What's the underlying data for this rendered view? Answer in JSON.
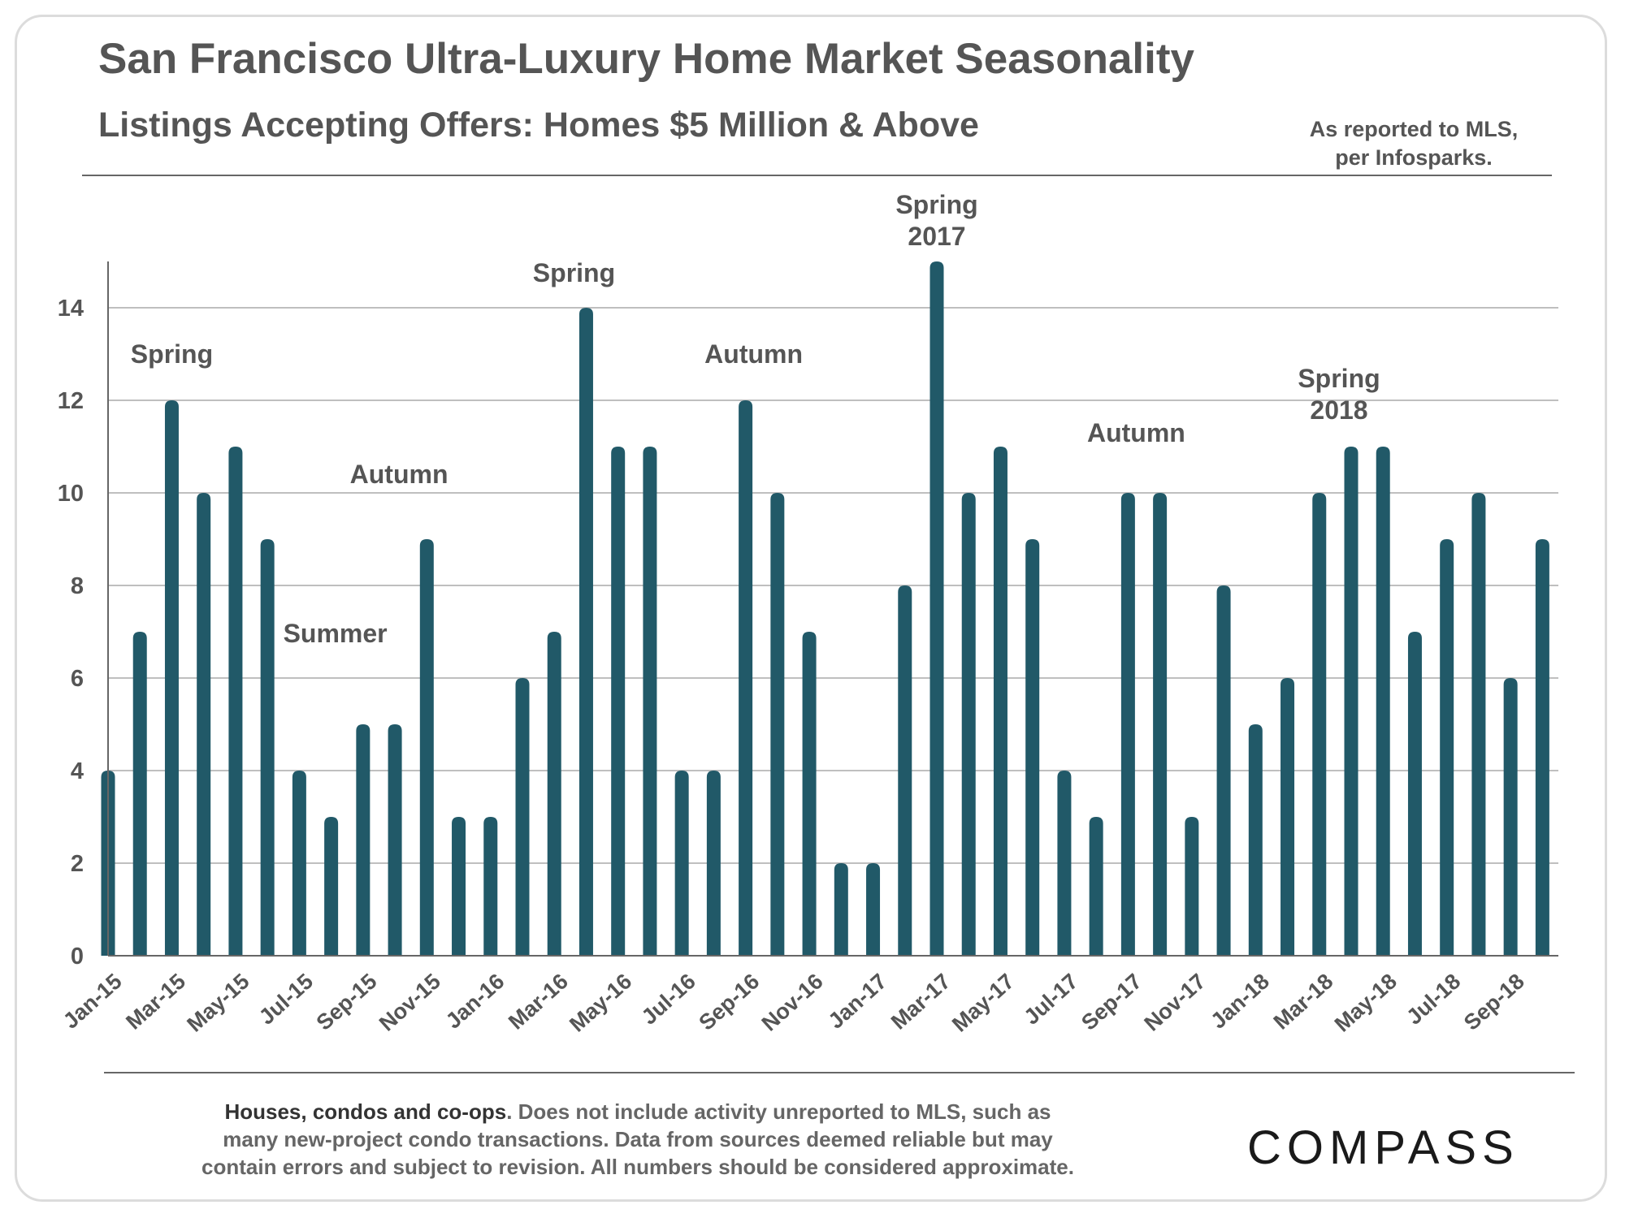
{
  "header": {
    "title": "San Francisco Ultra-Luxury Home Market Seasonality",
    "subtitle": "Listings Accepting Offers: Homes $5 Million & Above",
    "source_line1": "As reported to MLS,",
    "source_line2": "per Infosparks."
  },
  "colors": {
    "bar": "#215968",
    "gridline": "#bfbfbf",
    "text": "#555555"
  },
  "chart_data": {
    "type": "bar",
    "title": "San Francisco Ultra-Luxury Home Market Seasonality",
    "subtitle": "Listings Accepting Offers: Homes $5 Million & Above",
    "xlabel": "",
    "ylabel": "",
    "ylim": [
      0,
      15
    ],
    "yticks": [
      0,
      2,
      4,
      6,
      8,
      10,
      12,
      14
    ],
    "grid": true,
    "legend": "none",
    "categories": [
      "Jan-15",
      "Feb-15",
      "Mar-15",
      "Apr-15",
      "May-15",
      "Jun-15",
      "Jul-15",
      "Aug-15",
      "Sep-15",
      "Oct-15",
      "Nov-15",
      "Dec-15",
      "Jan-16",
      "Feb-16",
      "Mar-16",
      "Apr-16",
      "May-16",
      "Jun-16",
      "Jul-16",
      "Aug-16",
      "Sep-16",
      "Oct-16",
      "Nov-16",
      "Dec-16",
      "Jan-17",
      "Feb-17",
      "Mar-17",
      "Apr-17",
      "May-17",
      "Jun-17",
      "Jul-17",
      "Aug-17",
      "Sep-17",
      "Oct-17",
      "Nov-17",
      "Dec-17",
      "Jan-18",
      "Feb-18",
      "Mar-18",
      "Apr-18",
      "May-18",
      "Jun-18",
      "Jul-18",
      "Aug-18",
      "Sep-18",
      "Oct-18"
    ],
    "values": [
      4,
      7,
      12,
      10,
      11,
      9,
      4,
      3,
      5,
      5,
      9,
      3,
      3,
      6,
      7,
      14,
      11,
      11,
      4,
      4,
      12,
      10,
      7,
      2,
      2,
      8,
      15,
      10,
      11,
      9,
      4,
      3,
      10,
      10,
      3,
      8,
      5,
      6,
      10,
      11,
      11,
      7,
      9,
      10,
      6,
      9
    ],
    "tick_labels": [
      "Jan-15",
      "Mar-15",
      "May-15",
      "Jul-15",
      "Sep-15",
      "Nov-15",
      "Jan-16",
      "Mar-16",
      "May-16",
      "Jul-16",
      "Sep-16",
      "Nov-16",
      "Jan-17",
      "Mar-17",
      "May-17",
      "Jul-17",
      "Sep-17",
      "Nov-17",
      "Jan-18",
      "Mar-18",
      "May-18",
      "Jul-18",
      "Sep-18"
    ],
    "annotations": [
      {
        "lines": [
          "Spring"
        ],
        "near": "Mar-15"
      },
      {
        "lines": [
          "Summer"
        ],
        "near": "Aug-15"
      },
      {
        "lines": [
          "Autumn"
        ],
        "near": "Oct-15"
      },
      {
        "lines": [
          "Spring"
        ],
        "near": "Apr-16"
      },
      {
        "lines": [
          "Autumn"
        ],
        "near": "Sep-16"
      },
      {
        "lines": [
          "Spring",
          "2017"
        ],
        "near": "Mar-17"
      },
      {
        "lines": [
          "Autumn"
        ],
        "near": "Sep-17"
      },
      {
        "lines": [
          "Spring",
          "2018"
        ],
        "near": "Apr-18"
      }
    ]
  },
  "footer": {
    "lead": "Houses, condos and co-ops",
    "line1_rest": ". Does not include activity unreported to MLS, such as",
    "line2": "many new-project condo transactions. Data from sources deemed reliable but may",
    "line3": "contain errors and subject to revision.  All numbers should be considered approximate.",
    "brand": "COMPASS"
  }
}
